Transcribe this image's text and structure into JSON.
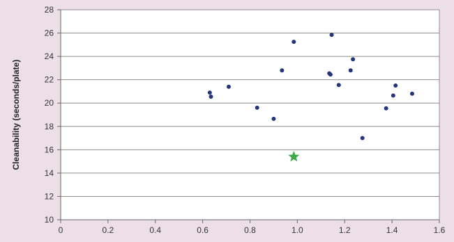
{
  "chart_data": {
    "type": "scatter",
    "title": "",
    "xlabel": "",
    "ylabel": "Cleanability (seconds/plate)",
    "xlim": [
      0,
      1.6
    ],
    "ylim": [
      10,
      28
    ],
    "x_ticks": [
      "0",
      "0.2",
      "0.4",
      "0.6",
      "0.8",
      "1.0",
      "1.2",
      "1.4",
      "1.6"
    ],
    "y_ticks": [
      "10",
      "12",
      "14",
      "16",
      "18",
      "20",
      "22",
      "24",
      "26",
      "28"
    ],
    "grid": "horizontal",
    "legend": "none",
    "series": [
      {
        "marker": "circle",
        "color": "#24357a",
        "points": [
          {
            "x": 0.63,
            "y": 20.9
          },
          {
            "x": 0.635,
            "y": 20.55
          },
          {
            "x": 0.71,
            "y": 21.4
          },
          {
            "x": 0.83,
            "y": 19.6
          },
          {
            "x": 0.9,
            "y": 18.65
          },
          {
            "x": 0.935,
            "y": 22.8
          },
          {
            "x": 0.985,
            "y": 25.25
          },
          {
            "x": 1.135,
            "y": 22.55
          },
          {
            "x": 1.14,
            "y": 22.45
          },
          {
            "x": 1.145,
            "y": 25.85
          },
          {
            "x": 1.175,
            "y": 21.55
          },
          {
            "x": 1.225,
            "y": 22.8
          },
          {
            "x": 1.235,
            "y": 23.75
          },
          {
            "x": 1.275,
            "y": 17.0
          },
          {
            "x": 1.375,
            "y": 19.55
          },
          {
            "x": 1.405,
            "y": 20.65
          },
          {
            "x": 1.415,
            "y": 21.5
          },
          {
            "x": 1.485,
            "y": 20.8
          }
        ]
      },
      {
        "marker": "star",
        "color": "#3cab47",
        "points": [
          {
            "x": 0.985,
            "y": 15.4
          }
        ]
      }
    ]
  }
}
